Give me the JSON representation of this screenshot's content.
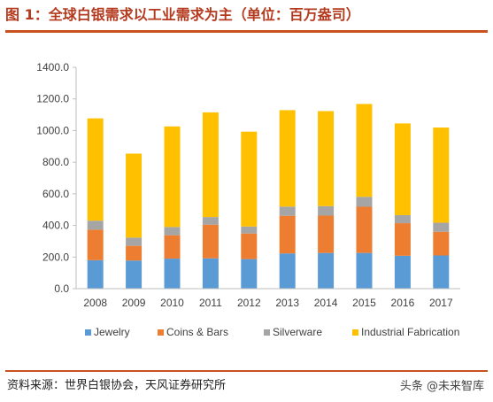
{
  "header": {
    "title": "图 1：全球白银需求以工业需求为主（单位：百万盎司）"
  },
  "footer": {
    "source": "资料来源：世界白银协会，天风证券研究所",
    "watermark": "头条 @未来智库"
  },
  "icons": {
    "watermark_icon": "at-sign-icon"
  },
  "colors": {
    "Jewelry": "#5b9bd5",
    "Coins & Bars": "#ed7d31",
    "Silverware": "#a5a5a5",
    "Industrial Fabrication": "#ffc000"
  },
  "chart_data": {
    "type": "bar",
    "stacked": true,
    "title": "",
    "xlabel": "",
    "ylabel": "",
    "ylim": [
      0,
      1400
    ],
    "yticks": [
      "0.0",
      "200.0",
      "400.0",
      "600.0",
      "800.0",
      "1000.0",
      "1200.0",
      "1400.0"
    ],
    "grid": false,
    "legend_position": "bottom",
    "categories": [
      "2008",
      "2009",
      "2010",
      "2011",
      "2012",
      "2013",
      "2014",
      "2015",
      "2016",
      "2017"
    ],
    "series": [
      {
        "name": "Jewelry",
        "values": [
          180,
          178,
          190,
          192,
          187,
          223,
          226,
          226,
          208,
          210
        ]
      },
      {
        "name": "Coins & Bars",
        "values": [
          193,
          93,
          148,
          213,
          162,
          238,
          236,
          292,
          206,
          150
        ]
      },
      {
        "name": "Silverware",
        "values": [
          57,
          52,
          52,
          48,
          44,
          58,
          60,
          63,
          51,
          57
        ]
      },
      {
        "name": "Industrial Fabrication",
        "values": [
          647,
          531,
          636,
          662,
          600,
          610,
          601,
          587,
          580,
          602
        ]
      }
    ]
  }
}
